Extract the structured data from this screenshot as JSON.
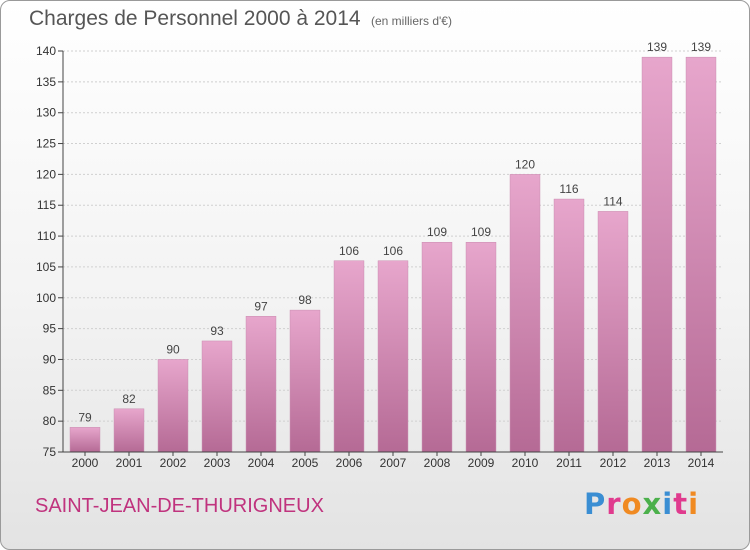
{
  "header": {
    "title": "Charges de Personnel 2000 à 2014",
    "subtitle": "(en milliers d'€)"
  },
  "footer": {
    "commune": "SAINT-JEAN-DE-THURIGNEUX",
    "logo_letters": [
      {
        "char": "P",
        "color": "#3a8ed3"
      },
      {
        "char": "r",
        "color": "#e03b8e"
      },
      {
        "char": "o",
        "color": "#f08a22"
      },
      {
        "char": "x",
        "color": "#4bb04b"
      },
      {
        "char": "i",
        "color": "#3a8ed3"
      },
      {
        "char": "t",
        "color": "#e03b8e"
      },
      {
        "char": "i",
        "color": "#f08a22"
      }
    ]
  },
  "colors": {
    "bar_top": "#e7a6cc",
    "bar_bottom": "#b56a95",
    "axis": "#444444",
    "grid": "#d0d0d0"
  },
  "chart_data": {
    "type": "bar",
    "title": "Charges de Personnel 2000 à 2014",
    "subtitle": "(en milliers d'€)",
    "categories": [
      "2000",
      "2001",
      "2002",
      "2003",
      "2004",
      "2005",
      "2006",
      "2007",
      "2008",
      "2009",
      "2010",
      "2011",
      "2012",
      "2013",
      "2014"
    ],
    "values": [
      79,
      82,
      90,
      93,
      97,
      98,
      106,
      106,
      109,
      109,
      120,
      116,
      114,
      139,
      139
    ],
    "ylim": [
      75,
      140
    ],
    "yticks": [
      75,
      80,
      85,
      90,
      95,
      100,
      105,
      110,
      115,
      120,
      125,
      130,
      135,
      140
    ],
    "grid": true,
    "legend": "none"
  }
}
